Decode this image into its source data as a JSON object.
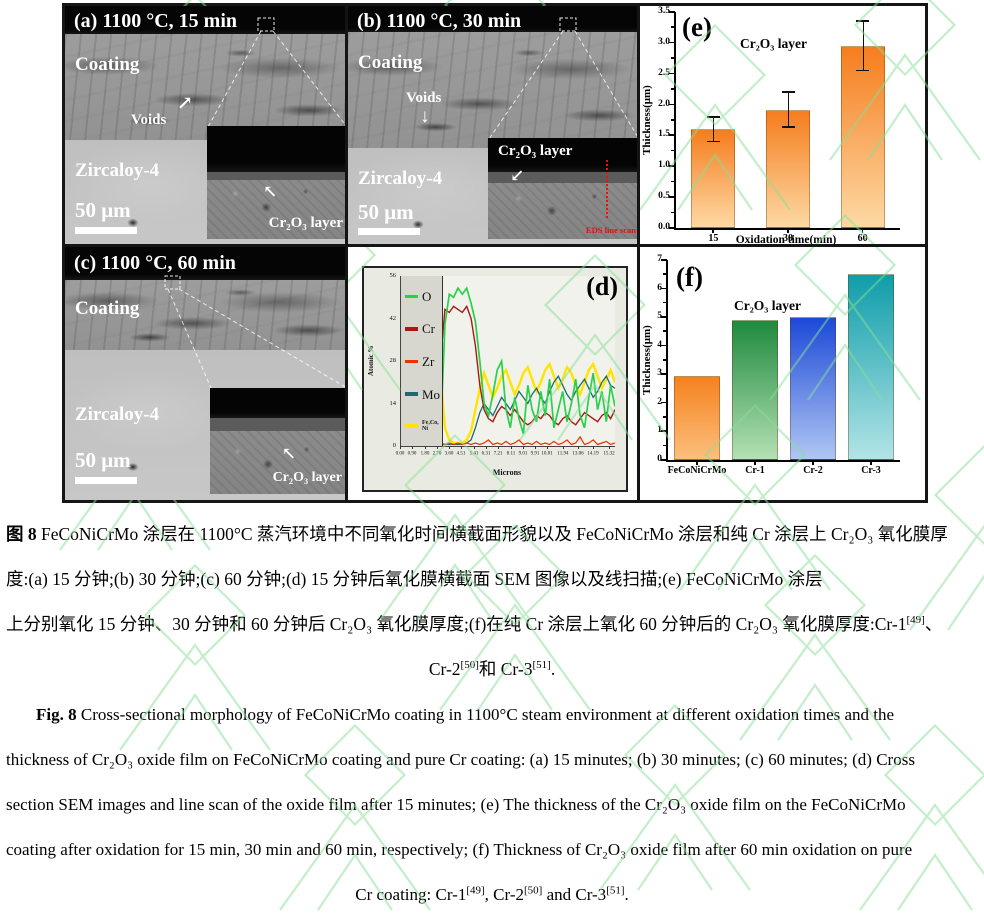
{
  "figure": {
    "panel_a": {
      "title": "(a) 1100 °C, 15 min",
      "coating_label": "Coating",
      "voids_label": "Voids",
      "substrate_label": "Zircaloy-4",
      "scale_label": "50 μm",
      "inset_label": "Cr₂O₃ layer"
    },
    "panel_b": {
      "title": "(b) 1100 °C, 30 min",
      "coating_label": "Coating",
      "voids_label": "Voids",
      "substrate_label": "Zircaloy-4",
      "scale_label": "50 μm",
      "inset_label": "Cr₂O₃ layer",
      "eds_label": "EDS line scan"
    },
    "panel_c": {
      "title": "(c) 1100 °C, 60 min",
      "coating_label": "Coating",
      "substrate_label": "Zircaloy-4",
      "scale_label": "50 μm",
      "inset_label": "Cr₂O₃ layer"
    }
  },
  "chart_data": [
    {
      "id": "e",
      "type": "bar",
      "panel_label": "(e)",
      "annotation": "Cr₂O₃ layer",
      "categories": [
        "15",
        "30",
        "60"
      ],
      "values": [
        1.6,
        1.92,
        2.95
      ],
      "errors": [
        0.2,
        0.28,
        0.4
      ],
      "xlabel": "Oxidation time(min)",
      "ylabel": "Thickness(μm)",
      "ylim": [
        0,
        3.5
      ],
      "ytick_step": 0.5,
      "bar_colors_top": [
        "#f57d1e",
        "#f57d1e",
        "#f57d1e"
      ],
      "bar_colors_bottom": [
        "#fdd9a4",
        "#fdd9a4",
        "#fdd9a4"
      ]
    },
    {
      "id": "f",
      "type": "bar",
      "panel_label": "(f)",
      "annotation": "Cr₂O₃ layer",
      "categories": [
        "FeCoNiCrMo",
        "Cr-1",
        "Cr-2",
        "Cr-3"
      ],
      "values": [
        2.95,
        4.9,
        5.0,
        6.5
      ],
      "xlabel": "",
      "ylabel": "Thickness(μm)",
      "ylim": [
        0,
        7
      ],
      "ytick_step": 1,
      "bar_colors_top": [
        "#f5821f",
        "#1f8a3e",
        "#1c49d8",
        "#0f9daa"
      ],
      "bar_colors_bottom": [
        "#fbbf7d",
        "#b4e0b4",
        "#b0c6f2",
        "#b2e4e6"
      ]
    },
    {
      "id": "d",
      "type": "line",
      "panel_label": "(d)",
      "xlabel": "Microns",
      "ylabel": "Atomic %",
      "ylim": [
        0,
        56
      ],
      "yticks": [
        0,
        14,
        28,
        42,
        56
      ],
      "xlim": [
        0,
        15.7
      ],
      "xticks": [
        "0.00",
        "0.90",
        "1.80",
        "2.70",
        "3.60",
        "4.51",
        "5.41",
        "6.31",
        "7.21",
        "8.11",
        "9.01",
        "9.91",
        "10.81",
        "11.94",
        "13.06",
        "14.19",
        "15.32"
      ],
      "legend": [
        {
          "label_lines": [
            "O"
          ],
          "color": "#2ad04a",
          "small": false
        },
        {
          "label_lines": [
            "Cr"
          ],
          "color": "#a81a10",
          "small": false
        },
        {
          "label_lines": [
            "Zr"
          ],
          "color": "#f03000",
          "small": false
        },
        {
          "label_lines": [
            "Mo"
          ],
          "color": "#1d6a70",
          "small": false
        },
        {
          "label_lines": [
            "Fe,Co,",
            "Ni"
          ],
          "color": "#ffe400",
          "small": true
        }
      ],
      "x_start": 2.9,
      "x_step": 0.32,
      "series": [
        {
          "name": "Fe,Co,Ni",
          "color": "#ffe400",
          "width": 2.4,
          "values": [
            24,
            6,
            2,
            1,
            1,
            1,
            2,
            5,
            12,
            19,
            24,
            20,
            16,
            19,
            23,
            25,
            21,
            17,
            20,
            24,
            26,
            22,
            18,
            21,
            25,
            27,
            23,
            19,
            22,
            26,
            24,
            20,
            17,
            21,
            25,
            27,
            23,
            19,
            22,
            25,
            21
          ]
        },
        {
          "name": "Mo",
          "color": "#1d6a70",
          "width": 1.3,
          "values": [
            0.5,
            0.5,
            0.5,
            0.5,
            0.5,
            0.5,
            1,
            2,
            6,
            11,
            14,
            12,
            10,
            13,
            16,
            14,
            12,
            15,
            18,
            16,
            14,
            17,
            19,
            16,
            14,
            18,
            21,
            23,
            20,
            17,
            15,
            18,
            20,
            22,
            19,
            16,
            18,
            21,
            23,
            20,
            19
          ]
        },
        {
          "name": "Cr",
          "color": "#a81a10",
          "width": 1.4,
          "values": [
            28,
            45,
            44,
            46,
            45,
            44,
            46,
            42,
            33,
            20,
            12,
            9,
            8,
            11,
            13,
            12,
            10,
            12,
            10,
            8,
            7,
            8,
            10,
            9,
            11,
            10,
            8,
            7,
            9,
            10,
            8,
            7,
            9,
            11,
            10,
            9,
            8,
            10,
            11,
            9,
            12
          ]
        },
        {
          "name": "O",
          "color": "#2ad04a",
          "width": 1.7,
          "values": [
            3,
            40,
            50,
            49,
            52,
            50,
            52,
            47,
            41,
            28,
            14,
            10,
            17,
            25,
            28,
            12,
            6,
            16,
            9,
            4,
            20,
            12,
            8,
            18,
            10,
            22,
            6,
            12,
            18,
            8,
            14,
            22,
            10,
            6,
            16,
            24,
            12,
            18,
            8,
            20,
            13
          ]
        },
        {
          "name": "Zr",
          "color": "#f03000",
          "width": 1.2,
          "values": [
            1,
            0.5,
            1,
            0.5,
            1,
            0.5,
            1,
            0.5,
            1,
            0.5,
            1,
            2,
            0.5,
            1,
            0.5,
            1.5,
            0.5,
            1,
            2,
            0.5,
            1,
            0.5,
            1.5,
            0.5,
            1,
            0.5,
            1.5,
            0.5,
            1,
            2,
            0.5,
            1,
            3,
            0.5,
            1,
            2,
            0.5,
            1,
            1.5,
            0.5,
            1
          ]
        }
      ]
    }
  ],
  "captions": {
    "zh": [
      [
        {
          "t": "图 8",
          "b": true
        },
        {
          "t": " FeCoNiCrMo 涂层在 1100°C 蒸汽环境中不同氧化时间横截面形貌以及 FeCoNiCrMo 涂层和纯 Cr 涂层上 Cr₂O₃ 氧化膜厚"
        }
      ],
      [
        {
          "t": "度:(a) 15 分钟;(b) 30 分钟;(c) 60 分钟;(d) 15 分钟后氧化膜横截面 SEM 图像以及线扫描;(e) FeCoNiCrMo 涂层"
        }
      ],
      [
        {
          "t": "上分别氧化 15 分钟、30 分钟和 60 分钟后 Cr₂O₃ 氧化膜厚度;(f)在纯 Cr 涂层上氧化 60 分钟后的 Cr₂O₃ 氧化膜厚度:Cr-1"
        },
        {
          "t": "[49]",
          "sup": true
        },
        {
          "t": "、"
        }
      ],
      [
        {
          "t": "Cr-2"
        },
        {
          "t": "[50]",
          "sup": true
        },
        {
          "t": "和 Cr-3"
        },
        {
          "t": "[51]",
          "sup": true
        },
        {
          "t": "."
        }
      ]
    ],
    "en": [
      [
        {
          "t": "Fig. 8",
          "b": true
        },
        {
          "t": " Cross-sectional morphology of FeCoNiCrMo coating in 1100°C steam environment at different oxidation times and the"
        }
      ],
      [
        {
          "t": "thickness of Cr₂O₃ oxide film on FeCoNiCrMo coating and pure Cr coating: (a) 15 minutes; (b) 30 minutes; (c) 60 minutes; (d) Cross"
        }
      ],
      [
        {
          "t": "section SEM images and line scan of the oxide film after 15 minutes; (e) The thickness of the Cr₂O₃ oxide film on the FeCoNiCrMo"
        }
      ],
      [
        {
          "t": "coating after oxidation for 15 min, 30 min and 60 min, respectively; (f) Thickness of Cr₂O₃ oxide film after 60 min oxidation on pure"
        }
      ],
      [
        {
          "t": "Cr coating: Cr-1"
        },
        {
          "t": "[49]",
          "sup": true
        },
        {
          "t": ", Cr-2"
        },
        {
          "t": "[50]",
          "sup": true
        },
        {
          "t": " and Cr-3"
        },
        {
          "t": "[51]",
          "sup": true
        },
        {
          "t": "."
        }
      ]
    ]
  },
  "colors": {
    "watermark": "#86e096",
    "accent_orange": "#f5821f",
    "eds_red": "#e51414"
  }
}
